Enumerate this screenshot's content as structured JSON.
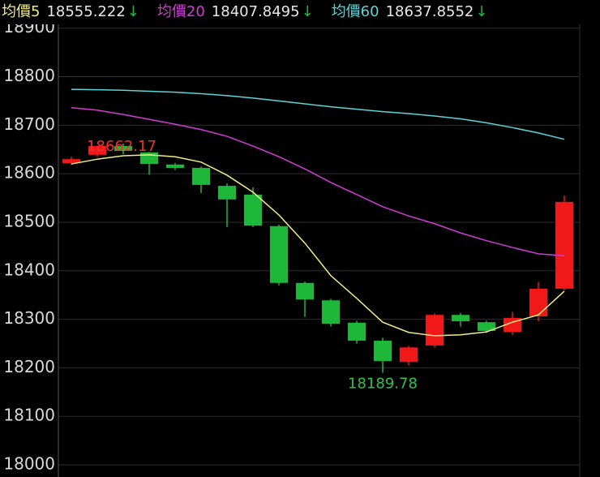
{
  "chart_data": {
    "type": "candlestick",
    "up_color": "#f01818",
    "down_color": "#1db739",
    "open": [
      18622,
      18639,
      18657,
      18644,
      18619,
      18612,
      18575,
      18557,
      18492,
      18375,
      18339,
      18293,
      18256,
      18212,
      18246,
      18309,
      18294,
      18274,
      18306,
      18363
    ],
    "high": [
      18635,
      18658,
      18662.17,
      18645,
      18622,
      18615,
      18580,
      18572,
      18495,
      18378,
      18342,
      18297,
      18262,
      18245,
      18312,
      18313,
      18297,
      18315,
      18377,
      18555
    ],
    "low": [
      18618,
      18635,
      18640,
      18598,
      18608,
      18560,
      18490,
      18490,
      18370,
      18305,
      18285,
      18250,
      18189.78,
      18205,
      18242,
      18285,
      18272,
      18268,
      18296,
      18360
    ],
    "close": [
      18630,
      18657,
      18647,
      18620,
      18612,
      18577,
      18547,
      18493,
      18375,
      18341,
      18291,
      18256,
      18214,
      18242,
      18309,
      18296,
      18276,
      18303,
      18363,
      18542
    ],
    "series": [
      {
        "name": "均價5",
        "color": "#f2ee86",
        "last": 18555.222,
        "arrow": "↓",
        "values": [
          18620,
          18630,
          18637,
          18639,
          18635,
          18624,
          18597,
          18562,
          18515,
          18457,
          18390,
          18343,
          18294,
          18273,
          18266,
          18268,
          18274,
          18294,
          18309,
          18358
        ]
      },
      {
        "name": "均價20",
        "color": "#d23cd6",
        "last": 18407.8495,
        "arrow": "↓",
        "values": [
          18736,
          18731,
          18722,
          18712,
          18702,
          18691,
          18677,
          18657,
          18635,
          18610,
          18582,
          18557,
          18532,
          18513,
          18497,
          18478,
          18462,
          18448,
          18435,
          18431
        ]
      },
      {
        "name": "均價60",
        "color": "#5fd3d6",
        "last": 18637.8552,
        "arrow": "↓",
        "values": [
          18774,
          18773,
          18772,
          18770,
          18768,
          18765,
          18761,
          18756,
          18750,
          18744,
          18738,
          18733,
          18728,
          18724,
          18719,
          18713,
          18705,
          18695,
          18684,
          18671
        ]
      }
    ],
    "annotations": [
      {
        "value": 18662.17,
        "color": "#f03030"
      },
      {
        "value": 18189.78,
        "color": "#2ec24a"
      }
    ],
    "ylim": [
      17975,
      18958
    ],
    "yticks": [
      18000,
      18100,
      18200,
      18300,
      18400,
      18500,
      18600,
      18700,
      18800,
      18900
    ],
    "grid": true
  }
}
